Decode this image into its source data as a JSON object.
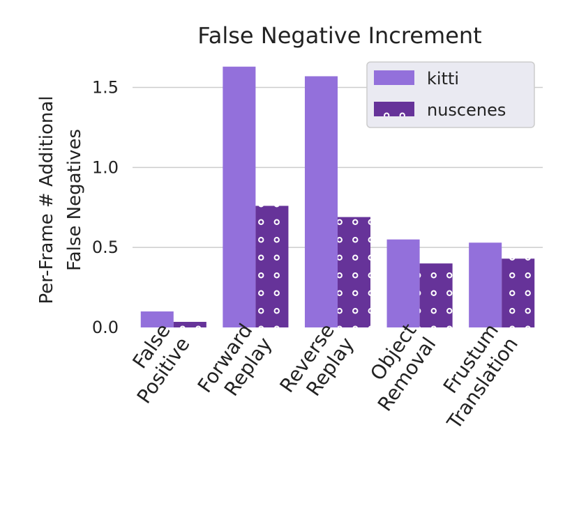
{
  "chart_data": {
    "type": "bar",
    "title": "False Negative Increment",
    "ylabel_lines": [
      "Per-Frame # Additional",
      "False Negatives"
    ],
    "categories": [
      [
        "False",
        "Positive"
      ],
      [
        "Forward",
        "Replay"
      ],
      [
        "Reverse",
        "Replay"
      ],
      [
        "Object",
        "Removal"
      ],
      [
        "Frustum",
        "Translation"
      ]
    ],
    "series": [
      {
        "name": "kitti",
        "values": [
          0.1,
          1.63,
          1.57,
          0.55,
          0.53
        ],
        "color": "#9370db",
        "pattern": "none"
      },
      {
        "name": "nuscenes",
        "values": [
          0.035,
          0.76,
          0.69,
          0.4,
          0.43
        ],
        "color": "#663399",
        "pattern": "dots"
      }
    ],
    "ylim": [
      0,
      1.72
    ],
    "yticks": [
      0.0,
      0.5,
      1.0,
      1.5
    ],
    "ytick_labels": [
      "0.0",
      "0.5",
      "1.0",
      "1.5"
    ],
    "grid": true,
    "legend_position": "top-right"
  }
}
